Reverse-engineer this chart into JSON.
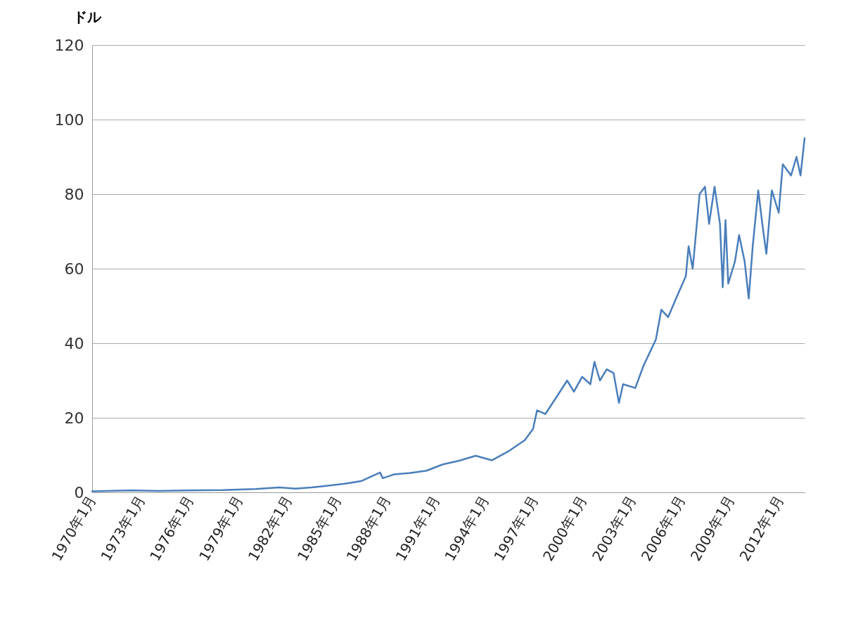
{
  "chart_data": {
    "type": "line",
    "ylabel": "ドル",
    "x": [
      "1970-01",
      "1972-06",
      "1974-01",
      "1976-01",
      "1978-01",
      "1980-01",
      "1981-06",
      "1982-06",
      "1983-06",
      "1984-06",
      "1985-06",
      "1986-06",
      "1987-08",
      "1987-10",
      "1988-06",
      "1989-06",
      "1990-06",
      "1991-06",
      "1992-06",
      "1993-06",
      "1994-06",
      "1995-06",
      "1996-06",
      "1996-12",
      "1997-03",
      "1997-09",
      "1998-06",
      "1999-01",
      "1999-06",
      "1999-12",
      "2000-06",
      "2000-09",
      "2001-01",
      "2001-06",
      "2001-11",
      "2002-03",
      "2002-06",
      "2003-03",
      "2003-09",
      "2004-06",
      "2004-10",
      "2005-03",
      "2005-10",
      "2006-04",
      "2006-06",
      "2006-09",
      "2007-02",
      "2007-06",
      "2007-09",
      "2008-01",
      "2008-05",
      "2008-07",
      "2008-09",
      "2008-11",
      "2009-04",
      "2009-07",
      "2009-11",
      "2010-02",
      "2010-05",
      "2010-09",
      "2010-12",
      "2011-03",
      "2011-07",
      "2011-12",
      "2012-03",
      "2012-09",
      "2013-01",
      "2013-04",
      "2013-07"
    ],
    "series": [
      {
        "color": "#4a7ebb",
        "values": [
          0.3,
          0.5,
          0.4,
          0.5,
          0.6,
          0.9,
          1.3,
          1.0,
          1.3,
          1.8,
          2.3,
          3.0,
          5.3,
          3.8,
          4.8,
          5.2,
          5.8,
          7.5,
          8.5,
          9.8,
          8.6,
          11,
          14,
          17,
          22,
          21,
          26,
          30,
          27,
          31,
          29,
          35,
          30,
          33,
          32,
          24,
          29,
          28,
          34,
          41,
          49,
          47,
          53,
          58,
          66,
          60,
          80,
          82,
          72,
          82,
          72,
          55,
          73,
          56,
          62,
          69,
          62,
          52,
          66,
          81,
          72,
          64,
          81,
          75,
          88,
          85,
          90,
          85,
          95
        ]
      }
    ],
    "xlim": [
      "1970-01",
      "2013-07"
    ],
    "xticks": [
      {
        "value": "1970-01",
        "label": "1970年1月"
      },
      {
        "value": "1973-01",
        "label": "1973年1月"
      },
      {
        "value": "1976-01",
        "label": "1976年1月"
      },
      {
        "value": "1979-01",
        "label": "1979年1月"
      },
      {
        "value": "1982-01",
        "label": "1982年1月"
      },
      {
        "value": "1985-01",
        "label": "1985年1月"
      },
      {
        "value": "1988-01",
        "label": "1988年1月"
      },
      {
        "value": "1991-01",
        "label": "1991年1月"
      },
      {
        "value": "1994-01",
        "label": "1994年1月"
      },
      {
        "value": "1997-01",
        "label": "1997年1月"
      },
      {
        "value": "2000-01",
        "label": "2000年1月"
      },
      {
        "value": "2003-01",
        "label": "2003年1月"
      },
      {
        "value": "2006-01",
        "label": "2006年1月"
      },
      {
        "value": "2009-01",
        "label": "2009年1月"
      },
      {
        "value": "2012-01",
        "label": "2012年1月"
      }
    ],
    "ylim": [
      0,
      120
    ],
    "yticks": [
      0,
      20,
      40,
      60,
      80,
      100,
      120
    ],
    "grid": "y",
    "line_style": "solid"
  }
}
